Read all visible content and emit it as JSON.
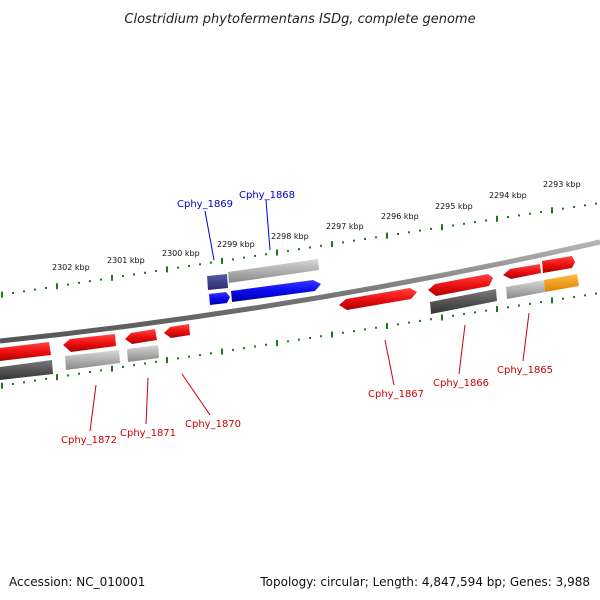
{
  "title": "Clostridium phytofermentans ISDg, complete genome",
  "footer": {
    "accession": "Accession: NC_010001",
    "summary": "Topology: circular; Length: 4,847,594 bp; Genes: 3,988"
  },
  "kbp_labels": [
    "2302 kbp",
    "2301 kbp",
    "2300 kbp",
    "2299 kbp",
    "2298 kbp",
    "2297 kbp",
    "2296 kbp",
    "2295 kbp",
    "2294 kbp",
    "2293 kbp"
  ],
  "gene_labels": {
    "cphy_1869": "Cphy_1869",
    "cphy_1868": "Cphy_1868",
    "cphy_1867": "Cphy_1867",
    "cphy_1866": "Cphy_1866",
    "cphy_1865": "Cphy_1865",
    "cphy_1872": "Cphy_1872",
    "cphy_1871": "Cphy_1871",
    "cphy_1870": "Cphy_1870"
  },
  "colors": {
    "highlight_label": "#0000cc",
    "gene_label": "#cc0000",
    "cds_red": "#ee1111",
    "cds_blue": "#0a0aee",
    "cds_navy": "#3c3c8c",
    "cds_orange": "#ff9900",
    "cds_gray": "#a9a9a9",
    "cds_dark": "#555555",
    "backbone": "#808080",
    "tick_green": "#1a7a1a"
  }
}
